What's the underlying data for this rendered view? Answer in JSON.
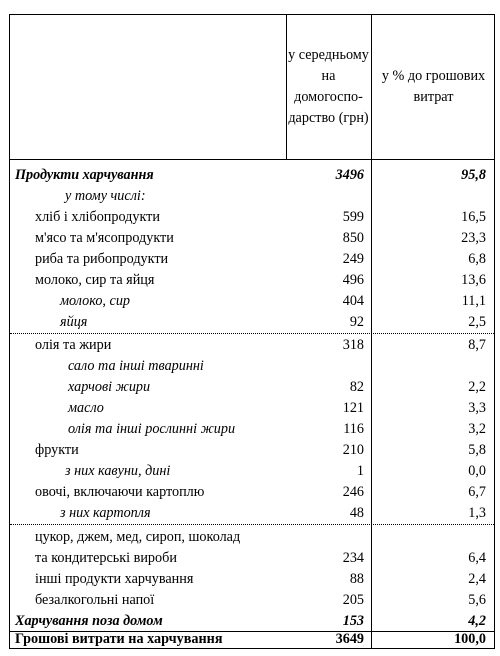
{
  "header": {
    "col1": [
      "у середньому",
      "на",
      "домогоспо-",
      "дарство (грн)"
    ],
    "col2": [
      "у % до грошових",
      "витрат"
    ]
  },
  "rows": [
    {
      "label": "Продукти харчування",
      "v1": "3496",
      "v2": "95,8"
    },
    {
      "label": "у тому числі:",
      "v1": "",
      "v2": ""
    },
    {
      "label": "хліб і хлібопродукти",
      "v1": "599",
      "v2": "16,5"
    },
    {
      "label": "м'ясо та м'ясопродукти",
      "v1": "850",
      "v2": "23,3"
    },
    {
      "label": "риба та рибопродукти",
      "v1": "249",
      "v2": "6,8"
    },
    {
      "label": "молоко, сир та яйця",
      "v1": "496",
      "v2": "13,6"
    },
    {
      "label": "молоко, сир",
      "v1": "404",
      "v2": "11,1"
    },
    {
      "label": "яйця",
      "v1": "92",
      "v2": "2,5"
    },
    {
      "label": "олія та жири",
      "v1": "318",
      "v2": "8,7"
    },
    {
      "label": "сало та інші тваринні",
      "v1": "",
      "v2": ""
    },
    {
      "label": "харчові жири",
      "v1": "82",
      "v2": "2,2"
    },
    {
      "label": "масло",
      "v1": "121",
      "v2": "3,3"
    },
    {
      "label": "олія та інші рослинні жири",
      "v1": "116",
      "v2": "3,2"
    },
    {
      "label": "фрукти",
      "v1": "210",
      "v2": "5,8"
    },
    {
      "label": "з них кавуни, дині",
      "v1": "1",
      "v2": "0,0"
    },
    {
      "label": "овочі, включаючи картоплю",
      "v1": "246",
      "v2": "6,7"
    },
    {
      "label": "з них картопля",
      "v1": "48",
      "v2": "1,3"
    },
    {
      "label": "цукор, джем, мед, сироп, шоколад",
      "v1": "",
      "v2": ""
    },
    {
      "label": "та кондитерські вироби",
      "v1": "234",
      "v2": "6,4"
    },
    {
      "label": "інші продукти харчування",
      "v1": "88",
      "v2": "2,4"
    },
    {
      "label": "безалкогольні напої",
      "v1": "205",
      "v2": "5,6"
    },
    {
      "label": "Харчування поза домом",
      "v1": "153",
      "v2": "4,2"
    },
    {
      "label": "Грошові витрати на харчування",
      "v1": "3649",
      "v2": "100,0"
    }
  ]
}
